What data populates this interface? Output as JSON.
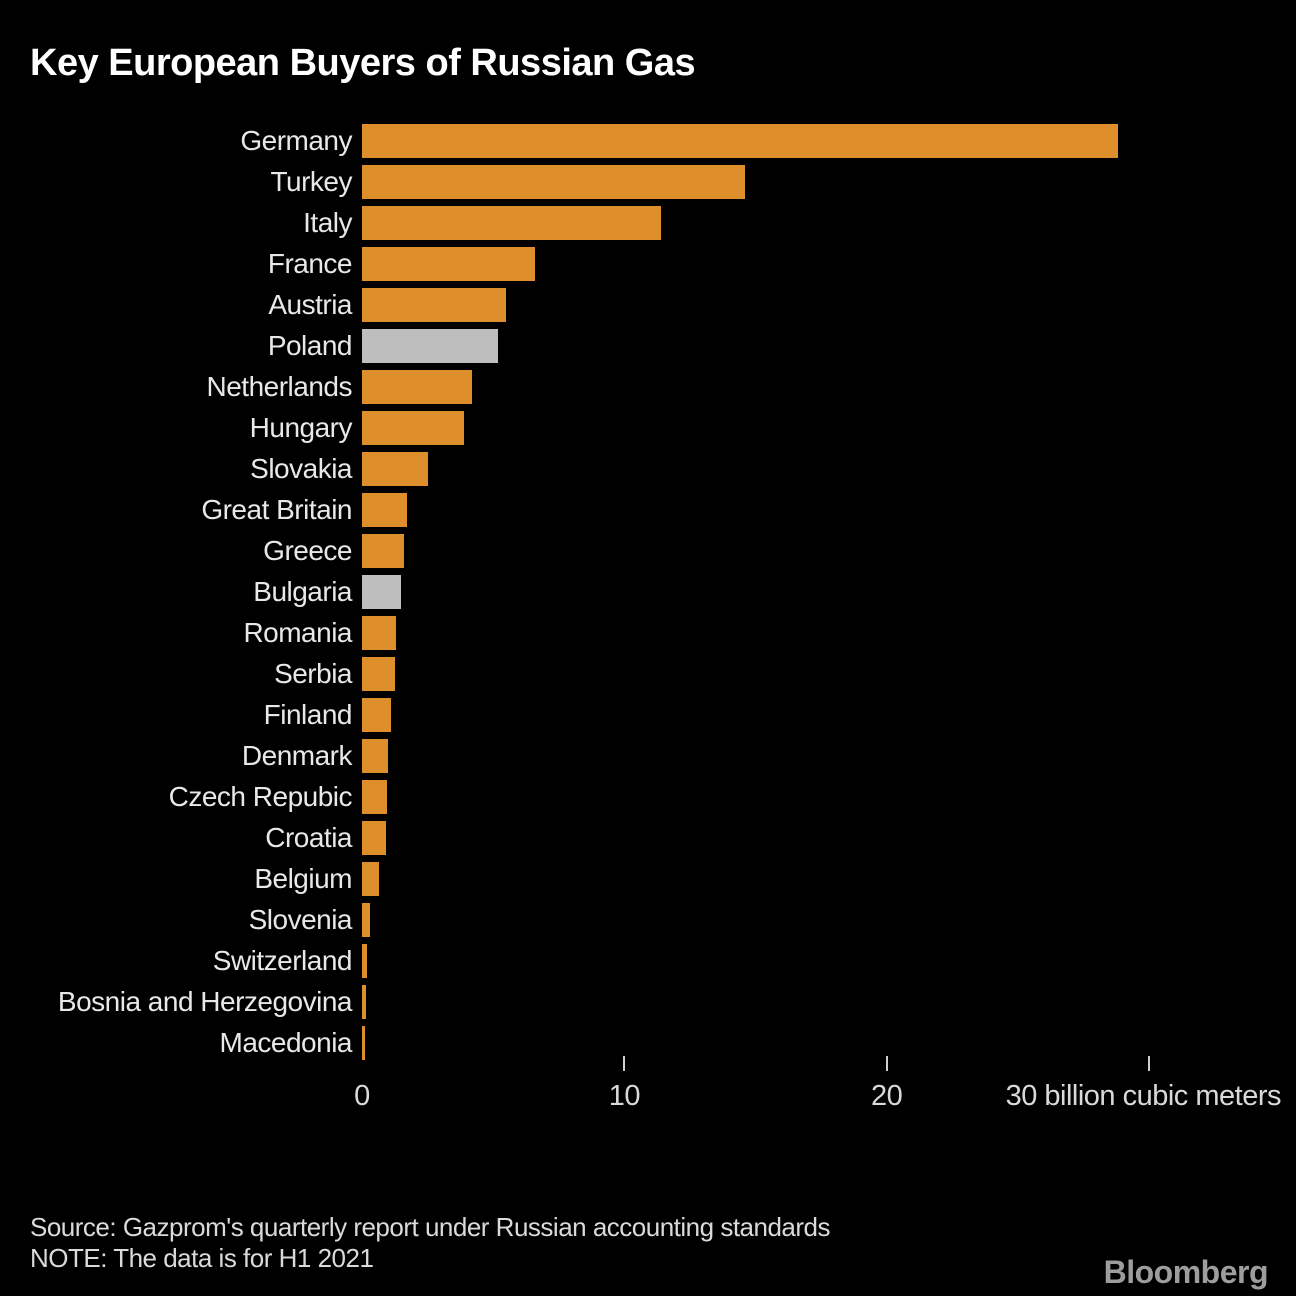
{
  "page": {
    "title": "Key European Buyers of Russian Gas",
    "source": "Source: Gazprom's quarterly report under Russian accounting standards",
    "note": "NOTE: The data is for H1 2021",
    "brand": "Bloomberg"
  },
  "colors": {
    "background": "#000000",
    "bar": "#DE8E2B",
    "bar_muted": "#BEBEBE",
    "title_text": "#FFFFFF",
    "label_text": "#E8E8E6",
    "axis_text": "#D9D9D9",
    "axis_tick": "#CFCFCF",
    "source_text": "#DADADA",
    "brand_text": "#9D9D9D"
  },
  "chart_data": {
    "type": "bar",
    "orientation": "horizontal",
    "title": "Key European Buyers of Russian Gas",
    "xlabel": "billion cubic meters",
    "ylabel": "",
    "xlim": [
      0,
      30
    ],
    "x_ticks": [
      0,
      10,
      20,
      30
    ],
    "unit": "billion cubic meters",
    "grid": false,
    "legend": "none",
    "muted_color_note": "Poland and Bulgaria shown in gray, all others orange",
    "bars": [
      {
        "label": "Germany",
        "value": 28.8,
        "color": "orange"
      },
      {
        "label": "Turkey",
        "value": 14.6,
        "color": "orange"
      },
      {
        "label": "Italy",
        "value": 11.4,
        "color": "orange"
      },
      {
        "label": "France",
        "value": 6.6,
        "color": "orange"
      },
      {
        "label": "Austria",
        "value": 5.5,
        "color": "orange"
      },
      {
        "label": "Poland",
        "value": 5.2,
        "color": "gray"
      },
      {
        "label": "Netherlands",
        "value": 4.2,
        "color": "orange"
      },
      {
        "label": "Hungary",
        "value": 3.9,
        "color": "orange"
      },
      {
        "label": "Slovakia",
        "value": 2.5,
        "color": "orange"
      },
      {
        "label": "Great Britain",
        "value": 1.7,
        "color": "orange"
      },
      {
        "label": "Greece",
        "value": 1.6,
        "color": "orange"
      },
      {
        "label": "Bulgaria",
        "value": 1.5,
        "color": "gray"
      },
      {
        "label": "Romania",
        "value": 1.3,
        "color": "orange"
      },
      {
        "label": "Serbia",
        "value": 1.25,
        "color": "orange"
      },
      {
        "label": "Finland",
        "value": 1.1,
        "color": "orange"
      },
      {
        "label": "Denmark",
        "value": 1.0,
        "color": "orange"
      },
      {
        "label": "Czech Repubic",
        "value": 0.95,
        "color": "orange"
      },
      {
        "label": "Croatia",
        "value": 0.9,
        "color": "orange"
      },
      {
        "label": "Belgium",
        "value": 0.65,
        "color": "orange"
      },
      {
        "label": "Slovenia",
        "value": 0.3,
        "color": "orange"
      },
      {
        "label": "Switzerland",
        "value": 0.2,
        "color": "orange"
      },
      {
        "label": "Bosnia and Herzegovina",
        "value": 0.15,
        "color": "orange"
      },
      {
        "label": "Macedonia",
        "value": 0.1,
        "color": "orange"
      }
    ]
  }
}
